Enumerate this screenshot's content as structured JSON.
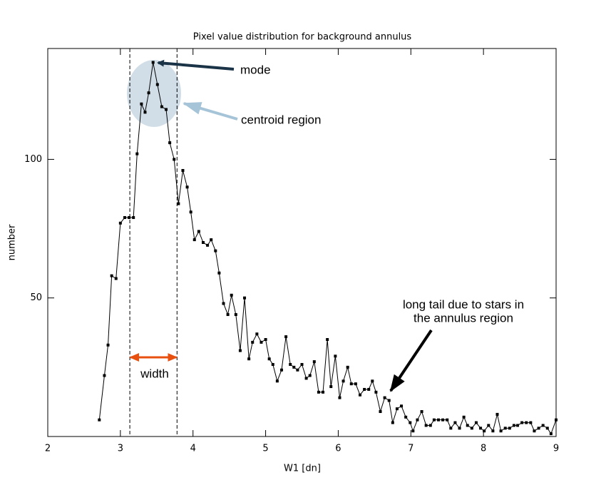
{
  "chart_data": {
    "type": "line",
    "title": "Pixel value distribution for background annulus",
    "x_label": "W1 [dn]",
    "y_label": "number",
    "xlim": [
      2,
      9
    ],
    "ylim": [
      0,
      140
    ],
    "xticks": [
      2,
      3,
      4,
      5,
      6,
      7,
      8,
      9
    ],
    "yticks": [
      50,
      100
    ],
    "x": [
      2.71,
      2.78,
      2.83,
      2.88,
      2.94,
      3.0,
      3.06,
      3.12,
      3.18,
      3.23,
      3.29,
      3.34,
      3.39,
      3.45,
      3.51,
      3.57,
      3.63,
      3.68,
      3.74,
      3.8,
      3.86,
      3.92,
      3.97,
      4.02,
      4.08,
      4.14,
      4.2,
      4.25,
      4.31,
      4.36,
      4.42,
      4.48,
      4.53,
      4.59,
      4.65,
      4.71,
      4.77,
      4.82,
      4.88,
      4.94,
      5.0,
      5.05,
      5.1,
      5.16,
      5.22,
      5.28,
      5.34,
      5.39,
      5.44,
      5.5,
      5.56,
      5.61,
      5.67,
      5.73,
      5.79,
      5.85,
      5.9,
      5.96,
      6.02,
      6.07,
      6.13,
      6.18,
      6.24,
      6.3,
      6.36,
      6.42,
      6.47,
      6.52,
      6.58,
      6.64,
      6.7,
      6.75,
      6.81,
      6.87,
      6.93,
      6.99,
      7.03,
      7.09,
      7.15,
      7.21,
      7.27,
      7.32,
      7.38,
      7.44,
      7.5,
      7.55,
      7.61,
      7.67,
      7.73,
      7.78,
      7.84,
      7.9,
      7.96,
      8.01,
      8.07,
      8.13,
      8.19,
      8.24,
      8.3,
      8.36,
      8.42,
      8.47,
      8.53,
      8.59,
      8.65,
      8.7,
      8.76,
      8.82,
      8.88,
      8.93,
      9.0
    ],
    "series": [
      {
        "color": "#000000",
        "values": [
          6,
          22,
          33,
          58,
          57,
          77,
          79,
          79,
          79,
          102,
          120,
          117,
          124,
          135,
          127,
          119,
          118,
          106,
          100,
          84,
          96,
          90,
          81,
          71,
          74,
          70,
          69,
          71,
          67,
          59,
          48,
          44,
          51,
          44,
          31,
          50,
          28,
          34,
          37,
          34,
          35,
          28,
          26,
          20,
          24,
          36,
          26,
          25,
          24,
          26,
          21,
          22,
          27,
          16,
          16,
          35,
          18,
          29,
          14,
          20,
          25,
          19,
          19,
          15,
          17,
          17,
          20,
          16,
          9,
          14,
          13,
          5,
          10,
          11,
          7,
          5,
          2,
          6,
          9,
          4,
          4,
          6,
          6,
          6,
          6,
          3,
          5,
          3,
          7,
          4,
          3,
          5,
          3,
          2,
          4,
          2,
          8,
          2,
          3,
          3,
          4,
          4,
          5,
          5,
          5,
          2,
          3,
          4,
          3,
          1,
          6
        ]
      }
    ],
    "width_bounds": [
      3.13,
      3.78
    ],
    "annotations": {
      "mode": "mode",
      "centroid": "centroid region",
      "width": "width",
      "tail": [
        "long tail due to stars in",
        "the annulus region"
      ]
    }
  }
}
